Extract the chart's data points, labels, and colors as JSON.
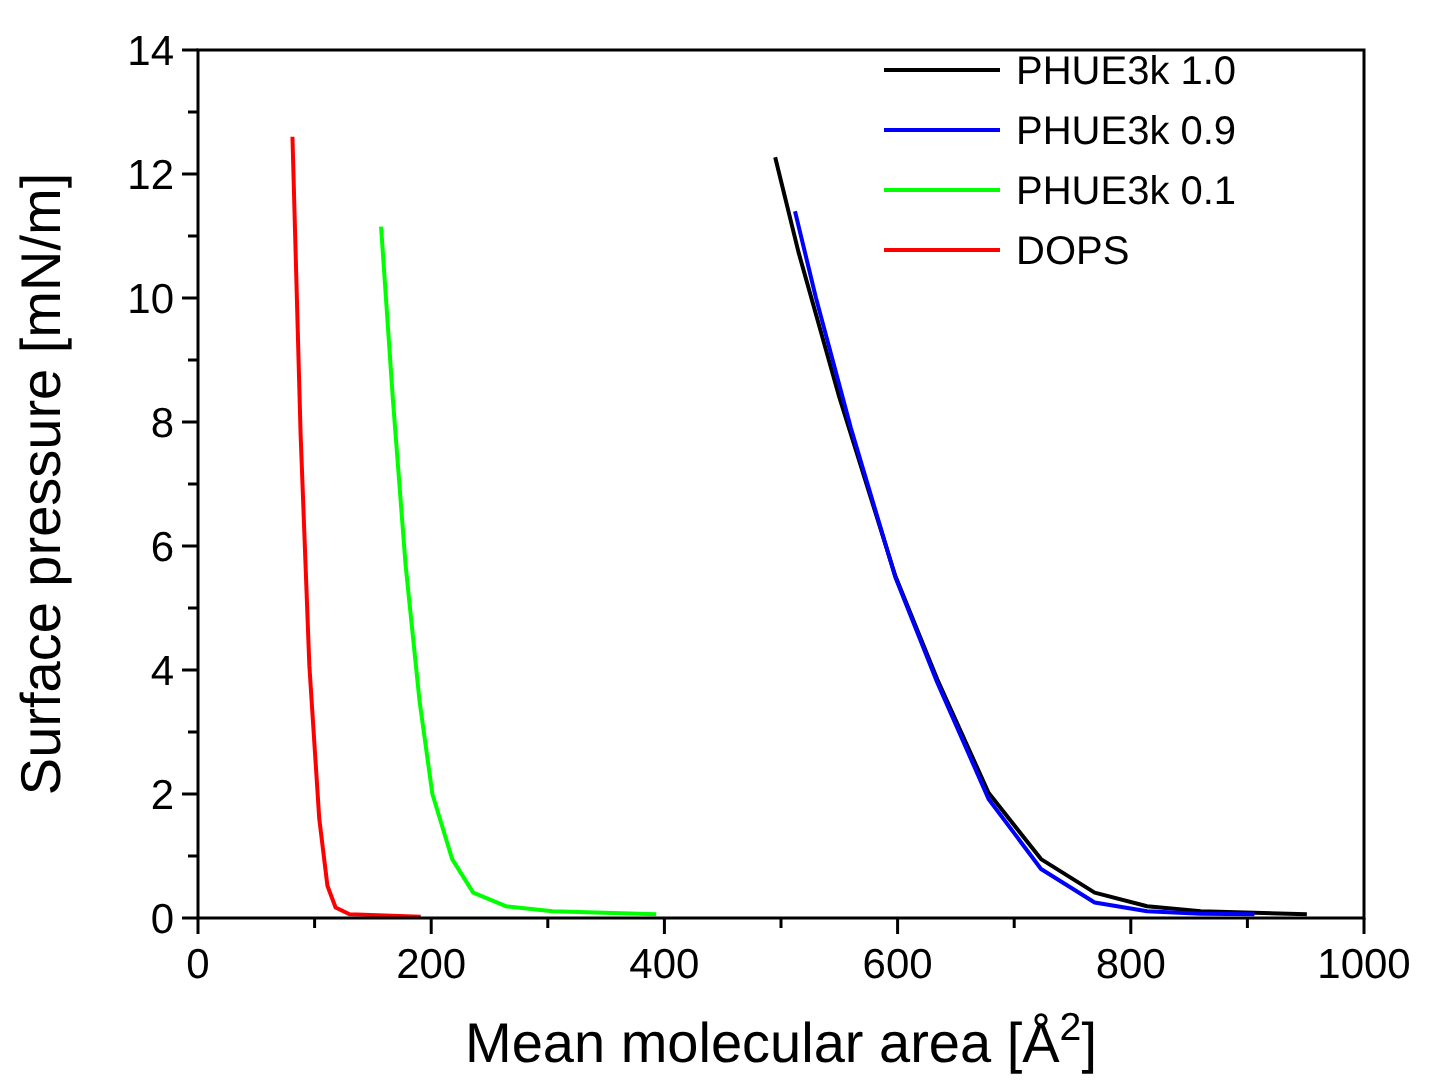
{
  "chart_data": {
    "type": "line",
    "xlabel": "Mean molecular area [Å$^{2}$]",
    "ylabel": "Surface pressure [mN/m]",
    "xlim": [
      0,
      1000
    ],
    "ylim": [
      0,
      14
    ],
    "xticks": [
      0,
      {
        "value": 100,
        "label": null
      },
      200,
      {
        "value": 300,
        "label": null
      },
      400,
      {
        "value": 500,
        "label": null
      },
      600,
      {
        "value": 700,
        "label": null
      },
      800,
      {
        "value": 900,
        "label": null
      },
      1000
    ],
    "yticks": [
      0,
      {
        "value": 1,
        "label": null
      },
      2,
      {
        "value": 3,
        "label": null
      },
      4,
      {
        "value": 5,
        "label": null
      },
      6,
      {
        "value": 7,
        "label": null
      },
      8,
      {
        "value": 9,
        "label": null
      },
      10,
      {
        "value": 11,
        "label": null
      },
      12,
      {
        "value": 13,
        "label": null
      },
      14
    ],
    "grid": false,
    "legend": "top right",
    "line_style": "solid",
    "marker": "none",
    "series": [
      {
        "name": "PHUE3k 1.0",
        "color": "#000000",
        "x": [
          495,
          515,
          550,
          598,
          634,
          678,
          723,
          769,
          814,
          860,
          951
        ],
        "values": [
          12.27,
          10.74,
          8.4,
          5.52,
          3.85,
          2.02,
          0.95,
          0.41,
          0.19,
          0.11,
          0.06
        ]
      },
      {
        "name": "PHUE3k 0.9",
        "color": "#0000ff",
        "x": [
          512,
          530,
          560,
          598,
          634,
          678,
          723,
          769,
          814,
          860,
          906
        ],
        "values": [
          11.4,
          10.0,
          7.9,
          5.5,
          3.8,
          1.92,
          0.79,
          0.25,
          0.11,
          0.07,
          0.06
        ]
      },
      {
        "name": "PHUE3k 0.1",
        "color": "#00ff00",
        "x": [
          157,
          167,
          178,
          190,
          201,
          218,
          236,
          264,
          304,
          393
        ],
        "values": [
          11.15,
          8.4,
          5.7,
          3.5,
          2.0,
          0.95,
          0.41,
          0.19,
          0.11,
          0.06
        ]
      },
      {
        "name": "DOPS",
        "color": "#ff0000",
        "x": [
          81,
          88,
          95.5,
          104,
          111,
          118,
          130,
          191
        ],
        "values": [
          12.6,
          7.8,
          4.07,
          1.6,
          0.52,
          0.17,
          0.06,
          0.02
        ]
      }
    ]
  }
}
